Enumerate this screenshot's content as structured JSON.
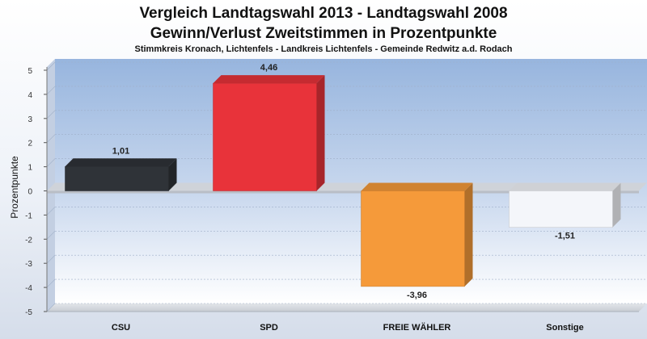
{
  "chart_data": {
    "type": "bar",
    "title": [
      "Vergleich Landtagswahl 2013 - Landtagswahl 2008",
      "Gewinn/Verlust Zweitstimmen in Prozentpunkte"
    ],
    "subtitle": "Stimmkreis Kronach, Lichtenfels - Landkreis Lichtenfels - Gemeinde Redwitz a.d. Rodach",
    "xlabel": "",
    "ylabel": "Prozentpunkte",
    "categories": [
      "CSU",
      "SPD",
      "FREIE WÄHLER",
      "Sonstige"
    ],
    "values": [
      1.01,
      4.46,
      -3.96,
      -1.51
    ],
    "value_labels": [
      "1,01",
      "4,46",
      "-3,96",
      "-1,51"
    ],
    "colors": [
      "#2f3338",
      "#e8333a",
      "#f59a3a",
      "#f4f6fa"
    ],
    "ylim": [
      -5,
      5
    ],
    "yticks": [
      5,
      4,
      3,
      2,
      1,
      0,
      -1,
      -2,
      -3,
      -4,
      -5
    ],
    "ytick_labels": [
      "5",
      "4",
      "3",
      "2",
      "1",
      "0",
      "-1",
      "-2",
      "-3",
      "-4",
      "-5"
    ],
    "grid": true,
    "legend": "none"
  }
}
